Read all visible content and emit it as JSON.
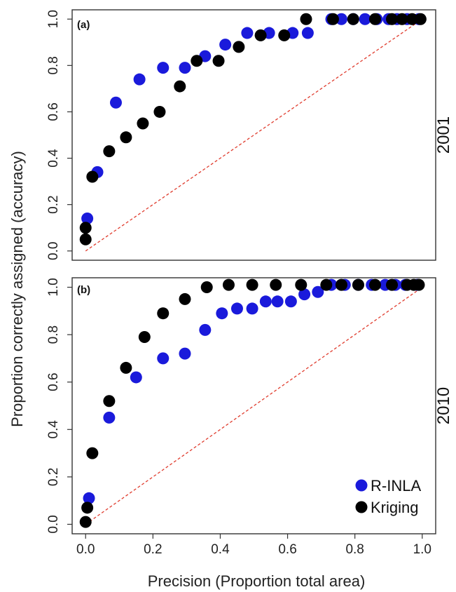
{
  "figure": {
    "xlabel": "Precision (Proportion total area)",
    "ylabel": "Proportion correctly assigned (accuracy)"
  },
  "legend": [
    {
      "label": "R-INLA",
      "color": "#1a1adb"
    },
    {
      "label": "Kriging",
      "color": "#000000"
    }
  ],
  "reference_line": {
    "color": "#e03c2e",
    "style": "dashed",
    "from": [
      0,
      0
    ],
    "to": [
      1,
      1
    ]
  },
  "chart_data": [
    {
      "type": "scatter",
      "panel_label": "(a)",
      "side_label": "2001",
      "xlim": [
        -0.04,
        1.04
      ],
      "ylim": [
        -0.04,
        1.04
      ],
      "xticks": [
        "0.0",
        "0.2",
        "0.4",
        "0.6",
        "0.8",
        "1.0"
      ],
      "yticks": [
        "0.0",
        "0.2",
        "0.4",
        "0.6",
        "0.8",
        "1.0"
      ],
      "grid": false,
      "series": [
        {
          "name": "R-INLA",
          "color": "#1a1adb",
          "points": [
            [
              0.005,
              0.14
            ],
            [
              0.035,
              0.34
            ],
            [
              0.09,
              0.64
            ],
            [
              0.16,
              0.74
            ],
            [
              0.23,
              0.79
            ],
            [
              0.295,
              0.79
            ],
            [
              0.355,
              0.84
            ],
            [
              0.415,
              0.89
            ],
            [
              0.48,
              0.94
            ],
            [
              0.545,
              0.94
            ],
            [
              0.615,
              0.94
            ],
            [
              0.66,
              0.94
            ],
            [
              0.73,
              1.0
            ],
            [
              0.76,
              1.0
            ],
            [
              0.795,
              1.0
            ],
            [
              0.83,
              1.0
            ],
            [
              0.865,
              1.0
            ],
            [
              0.9,
              1.0
            ],
            [
              0.925,
              1.0
            ],
            [
              0.955,
              1.0
            ],
            [
              0.99,
              1.0
            ]
          ]
        },
        {
          "name": "Kriging",
          "color": "#000000",
          "points": [
            [
              0.0,
              0.05
            ],
            [
              0.0,
              0.1
            ],
            [
              0.02,
              0.32
            ],
            [
              0.07,
              0.43
            ],
            [
              0.12,
              0.49
            ],
            [
              0.17,
              0.55
            ],
            [
              0.22,
              0.6
            ],
            [
              0.28,
              0.71
            ],
            [
              0.33,
              0.82
            ],
            [
              0.395,
              0.82
            ],
            [
              0.455,
              0.88
            ],
            [
              0.52,
              0.93
            ],
            [
              0.59,
              0.93
            ],
            [
              0.655,
              1.0
            ],
            [
              0.735,
              1.0
            ],
            [
              0.795,
              1.0
            ],
            [
              0.86,
              1.0
            ],
            [
              0.91,
              1.0
            ],
            [
              0.94,
              1.0
            ],
            [
              0.97,
              1.0
            ],
            [
              0.995,
              1.0
            ]
          ]
        }
      ]
    },
    {
      "type": "scatter",
      "panel_label": "(b)",
      "side_label": "2010",
      "xlim": [
        -0.04,
        1.04
      ],
      "ylim": [
        -0.04,
        1.04
      ],
      "xticks": [
        "0.0",
        "0.2",
        "0.4",
        "0.6",
        "0.8",
        "1.0"
      ],
      "yticks": [
        "0.0",
        "0.2",
        "0.4",
        "0.6",
        "0.8",
        "1.0"
      ],
      "grid": false,
      "series": [
        {
          "name": "R-INLA",
          "color": "#1a1adb",
          "points": [
            [
              0.01,
              0.11
            ],
            [
              0.07,
              0.45
            ],
            [
              0.15,
              0.62
            ],
            [
              0.23,
              0.7
            ],
            [
              0.295,
              0.72
            ],
            [
              0.355,
              0.82
            ],
            [
              0.405,
              0.89
            ],
            [
              0.45,
              0.91
            ],
            [
              0.495,
              0.91
            ],
            [
              0.535,
              0.94
            ],
            [
              0.57,
              0.94
            ],
            [
              0.61,
              0.94
            ],
            [
              0.65,
              0.97
            ],
            [
              0.69,
              0.98
            ],
            [
              0.73,
              1.01
            ],
            [
              0.77,
              1.01
            ],
            [
              0.81,
              1.01
            ],
            [
              0.85,
              1.01
            ],
            [
              0.89,
              1.01
            ],
            [
              0.92,
              1.01
            ],
            [
              0.95,
              1.01
            ],
            [
              0.985,
              1.01
            ]
          ]
        },
        {
          "name": "Kriging",
          "color": "#000000",
          "points": [
            [
              0.0,
              0.01
            ],
            [
              0.005,
              0.07
            ],
            [
              0.02,
              0.3
            ],
            [
              0.07,
              0.52
            ],
            [
              0.12,
              0.66
            ],
            [
              0.175,
              0.79
            ],
            [
              0.23,
              0.89
            ],
            [
              0.295,
              0.95
            ],
            [
              0.36,
              1.0
            ],
            [
              0.425,
              1.01
            ],
            [
              0.495,
              1.01
            ],
            [
              0.565,
              1.01
            ],
            [
              0.64,
              1.01
            ],
            [
              0.715,
              1.01
            ],
            [
              0.76,
              1.01
            ],
            [
              0.81,
              1.01
            ],
            [
              0.86,
              1.01
            ],
            [
              0.91,
              1.01
            ],
            [
              0.955,
              1.01
            ],
            [
              0.975,
              1.01
            ],
            [
              0.99,
              1.01
            ]
          ]
        }
      ]
    }
  ]
}
